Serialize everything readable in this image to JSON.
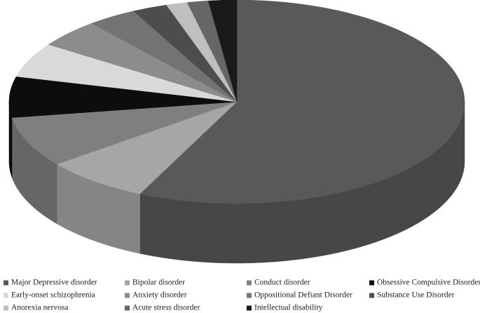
{
  "chart_data": {
    "type": "pie",
    "categories": [
      "Major Depressive disorder",
      "Bipolar disorder",
      "Conduct disorder",
      "Obsessive Compulsive Disorder",
      "Early-onset schizophrenia",
      "Anxiety disorder",
      "Oppositional Defiant Disorder",
      "Substance Use Disorder",
      "Anorexia nervosa",
      "Acute stress disorder",
      "Intellectual disability"
    ],
    "values": [
      57,
      7.5,
      8,
      6.5,
      5.5,
      4.5,
      3.5,
      2.5,
      1.5,
      1.5,
      2
    ],
    "colors": [
      "#595959",
      "#a6a6a6",
      "#7f7f7f",
      "#0d0d0d",
      "#d9d9d9",
      "#8c8c8c",
      "#737373",
      "#4d4d4d",
      "#bfbfbf",
      "#666666",
      "#1a1a1a"
    ],
    "legend": "bottom"
  }
}
